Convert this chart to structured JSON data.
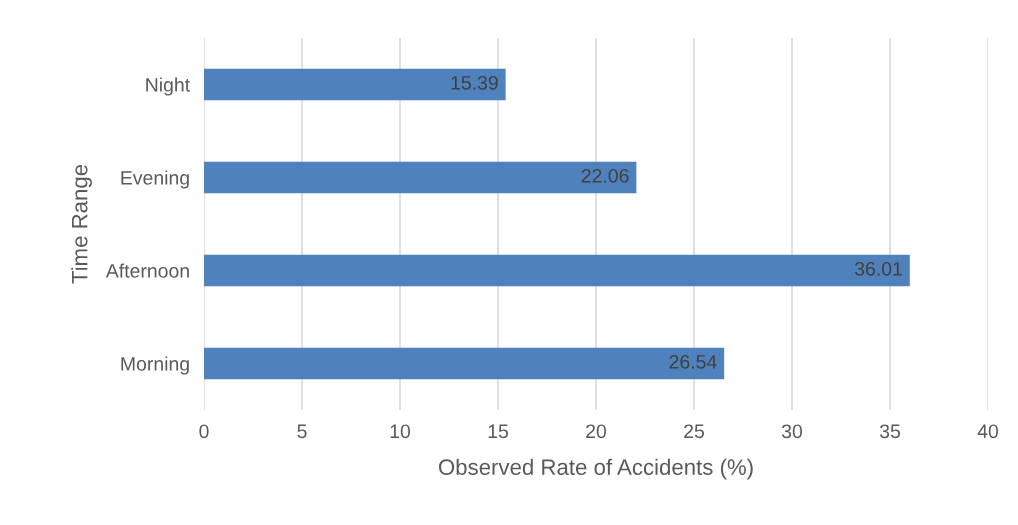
{
  "chart_data": {
    "type": "bar",
    "orientation": "horizontal",
    "xlabel": "Observed Rate of Accidents (%)",
    "ylabel": "Time Range",
    "categories": [
      "Night",
      "Evening",
      "Afternoon",
      "Morning"
    ],
    "values": [
      15.39,
      22.06,
      36.01,
      26.54
    ],
    "color": "#4f81bd",
    "xlim": [
      0,
      40
    ],
    "xticks": [
      0,
      5,
      10,
      15,
      20,
      25,
      30,
      35,
      40
    ],
    "grid": "x",
    "data_labels": true,
    "legend": false
  }
}
